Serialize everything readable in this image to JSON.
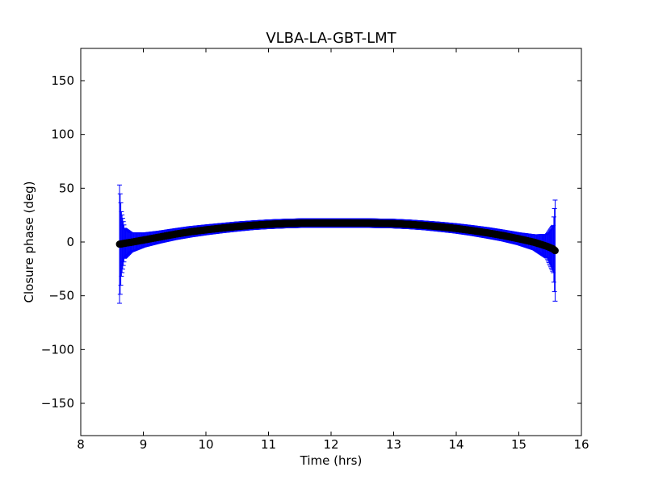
{
  "chart_data": {
    "type": "scatter",
    "title": "VLBA-LA-GBT-LMT",
    "xlabel": "Time (hrs)",
    "ylabel": "Closure phase (deg)",
    "xlim": [
      8,
      16
    ],
    "ylim": [
      -180,
      180
    ],
    "xticks": [
      8,
      9,
      10,
      11,
      12,
      13,
      14,
      15,
      16
    ],
    "yticks": [
      -150,
      -100,
      -50,
      0,
      50,
      100,
      150
    ],
    "xtick_labels": [
      "8",
      "9",
      "10",
      "11",
      "12",
      "13",
      "14",
      "15",
      "16"
    ],
    "ytick_labels": [
      "−150",
      "−100",
      "−50",
      "0",
      "50",
      "100",
      "150"
    ],
    "grid": false,
    "marker_color": "#000000",
    "errorbar_color": "#0000ff",
    "series": [
      {
        "x": [
          8.62,
          8.65,
          8.7,
          8.8,
          9.0,
          9.25,
          9.5,
          9.75,
          10.0,
          10.25,
          10.5,
          10.75,
          11.0,
          11.25,
          11.5,
          11.75,
          12.0,
          12.25,
          12.5,
          12.75,
          13.0,
          13.25,
          13.5,
          13.75,
          14.0,
          14.25,
          14.5,
          14.75,
          15.0,
          15.25,
          15.45,
          15.55,
          15.58
        ],
        "y": [
          -2.0,
          -1.8,
          -1.2,
          -0.3,
          1.8,
          4.5,
          7.2,
          9.5,
          11.3,
          12.9,
          14.4,
          15.6,
          16.5,
          17.1,
          17.5,
          17.7,
          17.7,
          17.7,
          17.6,
          17.4,
          17.1,
          16.4,
          15.4,
          14.1,
          12.6,
          10.7,
          8.5,
          6.0,
          3.0,
          -0.3,
          -4.0,
          -6.5,
          -8.0
        ],
        "err": [
          55.0,
          30.0,
          14.0,
          9.0,
          6.5,
          5.5,
          5.0,
          4.8,
          4.5,
          4.3,
          4.2,
          4.0,
          4.0,
          4.0,
          4.0,
          4.0,
          4.0,
          4.0,
          4.0,
          4.0,
          4.0,
          4.0,
          4.0,
          4.2,
          4.3,
          4.5,
          4.8,
          5.0,
          5.5,
          7.0,
          11.0,
          22.0,
          47.0
        ]
      }
    ]
  }
}
